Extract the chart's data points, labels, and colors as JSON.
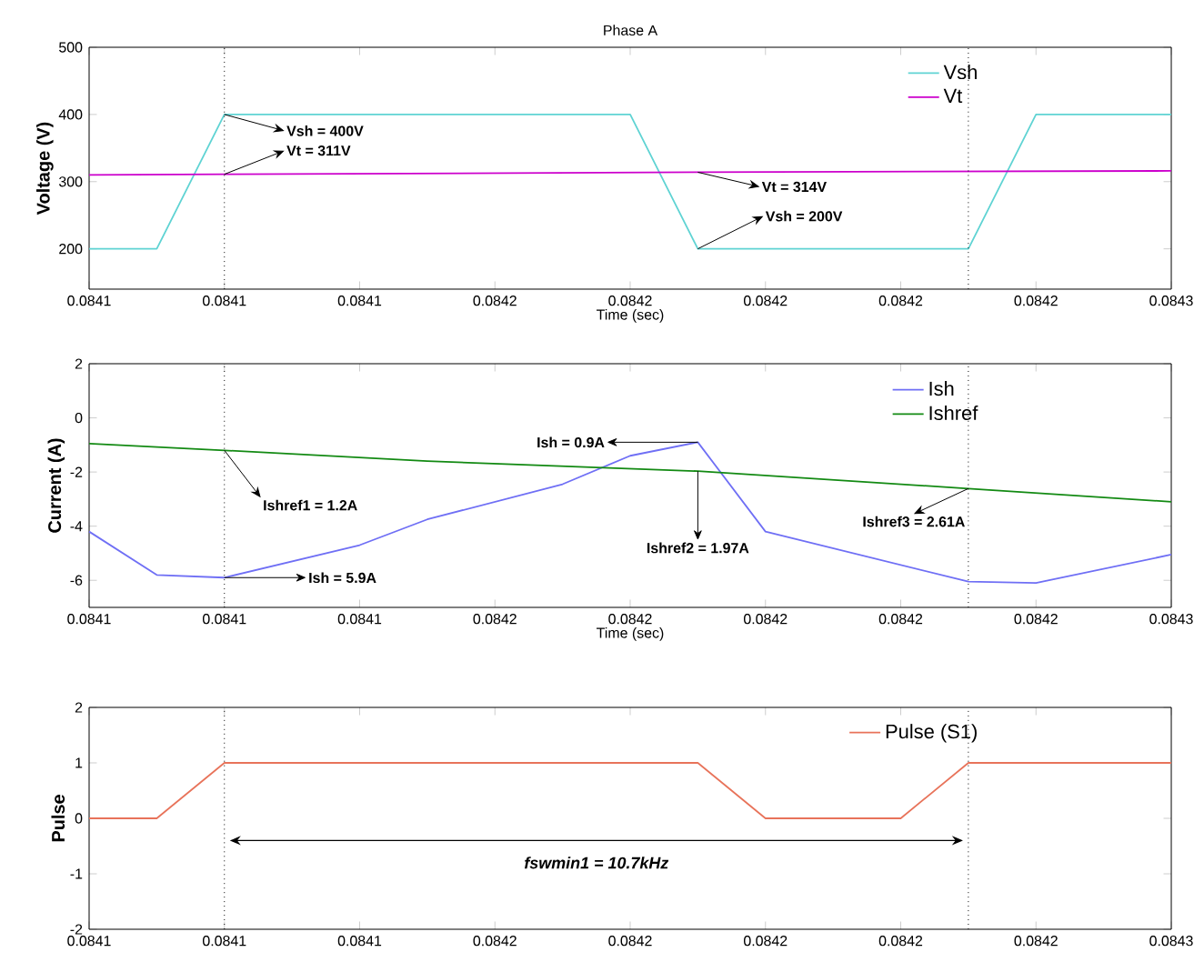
{
  "chart_data": [
    {
      "type": "line",
      "title": "Phase A",
      "xlabel": "Time (sec)",
      "ylabel": "Voltage (V)",
      "series": [
        {
          "name": "Vsh",
          "color": "#5fd3d3",
          "x": [
            0.0841,
            0.08411,
            0.08412,
            0.08418,
            0.08419,
            0.08423,
            0.08424,
            0.08426
          ],
          "values": [
            200,
            200,
            400,
            400,
            200,
            200,
            400,
            400
          ]
        },
        {
          "name": "Vt",
          "color": "#cc00cc",
          "x": [
            0.0841,
            0.08412,
            0.08419,
            0.08426
          ],
          "values": [
            310,
            311,
            314,
            316
          ]
        }
      ],
      "xlim": [
        0.0841,
        0.08426
      ],
      "xticks": [
        {
          "value": 0.0841,
          "label": "0.0841"
        },
        {
          "value": 0.08412,
          "label": "0.0841"
        },
        {
          "value": 0.08414,
          "label": "0.0841"
        },
        {
          "value": 0.08416,
          "label": "0.0842"
        },
        {
          "value": 0.08418,
          "label": "0.0842"
        },
        {
          "value": 0.0842,
          "label": "0.0842"
        },
        {
          "value": 0.08422,
          "label": "0.0842"
        },
        {
          "value": 0.08424,
          "label": "0.0842"
        },
        {
          "value": 0.08426,
          "label": "0.0843"
        }
      ],
      "ylim": [
        140,
        500
      ],
      "yticks": [
        200,
        300,
        400,
        500
      ],
      "legend": "top right",
      "ref_lines": [
        {
          "axis": "x",
          "value": 0.08412,
          "line_style": "dotted"
        },
        {
          "axis": "x",
          "value": 0.08423,
          "line_style": "dotted"
        }
      ],
      "annotations": [
        {
          "text": "Vsh = 400V",
          "x": 0.08412,
          "y": 400
        },
        {
          "text": "Vt = 311V",
          "x": 0.08412,
          "y": 311
        },
        {
          "text": "Vt = 314V",
          "x": 0.08419,
          "y": 314
        },
        {
          "text": "Vsh = 200V",
          "x": 0.08419,
          "y": 200
        }
      ]
    },
    {
      "type": "line",
      "xlabel": "Time (sec)",
      "ylabel": "Current (A)",
      "series": [
        {
          "name": "Ish",
          "color": "#6f6ff5",
          "x": [
            0.0841,
            0.08411,
            0.08412,
            0.08414,
            0.08415,
            0.08417,
            0.08418,
            0.08419,
            0.0842,
            0.08423,
            0.08424,
            0.08426
          ],
          "values": [
            -4.2,
            -5.8,
            -5.9,
            -4.7,
            -3.75,
            -2.45,
            -1.4,
            -0.9,
            -4.2,
            -6.05,
            -6.1,
            -5.05
          ]
        },
        {
          "name": "Ishref",
          "color": "#138a13",
          "x": [
            0.0841,
            0.08412,
            0.08415,
            0.08419,
            0.08423,
            0.08426
          ],
          "values": [
            -0.95,
            -1.2,
            -1.6,
            -1.97,
            -2.61,
            -3.1
          ]
        }
      ],
      "xlim": [
        0.0841,
        0.08426
      ],
      "xticks": [
        {
          "value": 0.0841,
          "label": "0.0841"
        },
        {
          "value": 0.08412,
          "label": "0.0841"
        },
        {
          "value": 0.08414,
          "label": "0.0841"
        },
        {
          "value": 0.08416,
          "label": "0.0842"
        },
        {
          "value": 0.08418,
          "label": "0.0842"
        },
        {
          "value": 0.0842,
          "label": "0.0842"
        },
        {
          "value": 0.08422,
          "label": "0.0842"
        },
        {
          "value": 0.08424,
          "label": "0.0842"
        },
        {
          "value": 0.08426,
          "label": "0.0843"
        }
      ],
      "ylim": [
        -7,
        2
      ],
      "yticks": [
        -6,
        -4,
        -2,
        0,
        2
      ],
      "legend": "top right",
      "ref_lines": [
        {
          "axis": "x",
          "value": 0.08412,
          "line_style": "dotted"
        },
        {
          "axis": "x",
          "value": 0.08423,
          "line_style": "dotted"
        }
      ],
      "annotations": [
        {
          "text": "Ishref1 = 1.2A",
          "x": 0.08412,
          "y": -1.2
        },
        {
          "text": "Ishref2 = 1.97A",
          "x": 0.08419,
          "y": -1.97
        },
        {
          "text": "Ishref3 = 2.61A",
          "x": 0.08423,
          "y": -2.61
        },
        {
          "text": "Ish = 0.9A",
          "x": 0.08419,
          "y": -0.9
        },
        {
          "text": "Ish = 5.9A",
          "x": 0.08412,
          "y": -5.9
        }
      ]
    },
    {
      "type": "line",
      "ylabel": "Pulse",
      "series": [
        {
          "name": "Pulse (S1)",
          "color": "#e8735a",
          "x": [
            0.0841,
            0.08411,
            0.08412,
            0.08419,
            0.0842,
            0.08422,
            0.08423,
            0.08426
          ],
          "values": [
            0,
            0,
            1,
            1,
            0,
            0,
            1,
            1
          ]
        }
      ],
      "xlim": [
        0.0841,
        0.08426
      ],
      "xticks": [
        {
          "value": 0.0841,
          "label": "0.0841"
        },
        {
          "value": 0.08412,
          "label": "0.0841"
        },
        {
          "value": 0.08414,
          "label": "0.0841"
        },
        {
          "value": 0.08416,
          "label": "0.0842"
        },
        {
          "value": 0.08418,
          "label": "0.0842"
        },
        {
          "value": 0.0842,
          "label": "0.0842"
        },
        {
          "value": 0.08422,
          "label": "0.0842"
        },
        {
          "value": 0.08424,
          "label": "0.0842"
        },
        {
          "value": 0.08426,
          "label": "0.0843"
        }
      ],
      "ylim": [
        -2,
        2
      ],
      "yticks": [
        -2,
        -1,
        0,
        1,
        2
      ],
      "legend": "top right",
      "ref_lines": [
        {
          "axis": "x",
          "value": 0.08412,
          "line_style": "dotted"
        },
        {
          "axis": "x",
          "value": 0.08423,
          "line_style": "dotted"
        }
      ],
      "annotations": [
        "fswmin1 = 10.7kHz"
      ]
    }
  ]
}
